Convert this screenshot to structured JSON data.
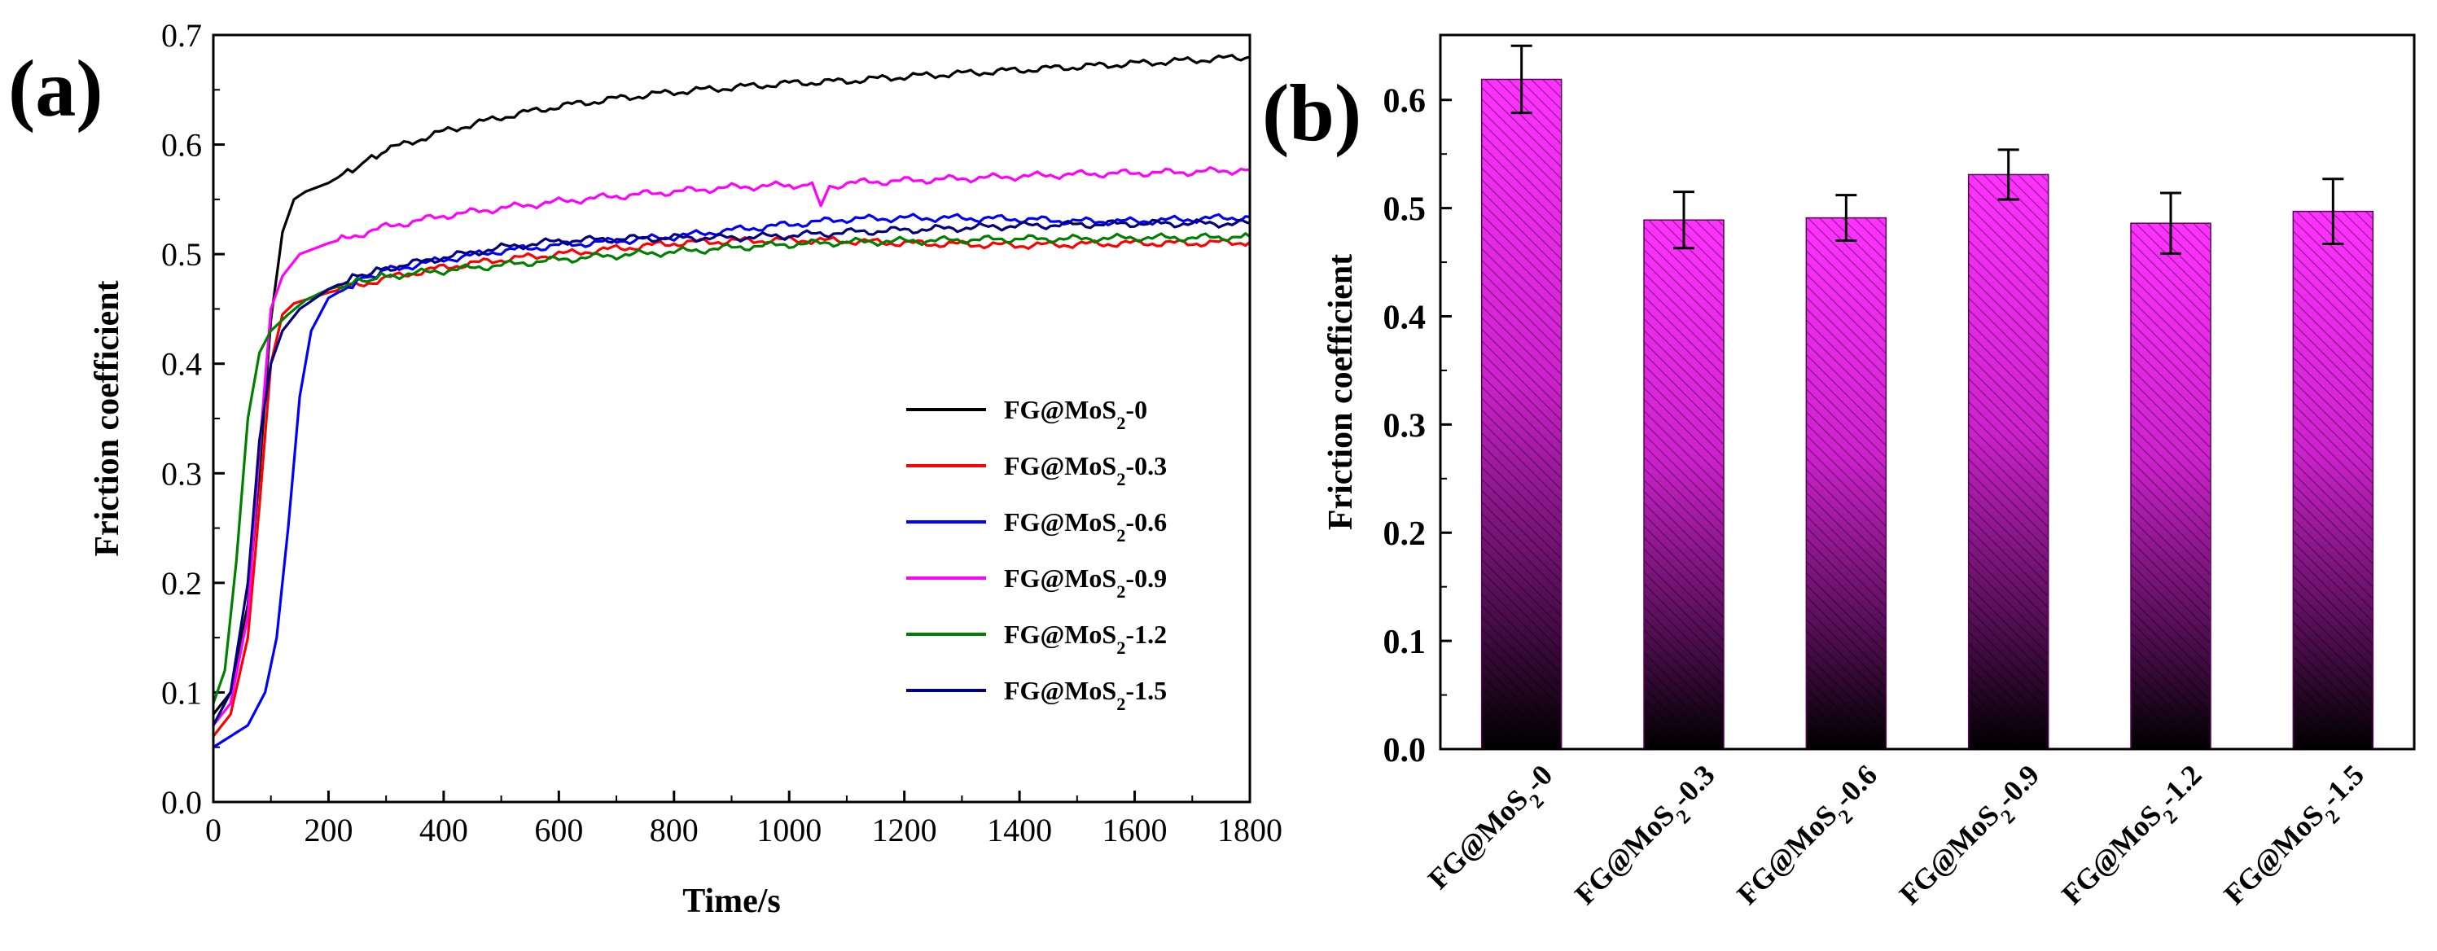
{
  "chart_data": [
    {
      "panel": "(a)",
      "type": "line",
      "xlabel": "Time/s",
      "ylabel": "Friction coefficient",
      "xlim": [
        0,
        1800
      ],
      "ylim": [
        0.0,
        0.7
      ],
      "xticks": [
        "0",
        "200",
        "400",
        "600",
        "800",
        "1000",
        "1200",
        "1400",
        "1600",
        "1800"
      ],
      "yticks": [
        "0.0",
        "0.1",
        "0.2",
        "0.3",
        "0.4",
        "0.5",
        "0.6",
        "0.7"
      ],
      "legend_position": "center-right",
      "series": [
        {
          "name": "FG@MoS",
          "subscript": "2",
          "suffix": "-0",
          "color": "#000000",
          "x": [
            0,
            30,
            60,
            80,
            100,
            120,
            140,
            160,
            200,
            250,
            300,
            400,
            500,
            600,
            700,
            800,
            900,
            1000,
            1100,
            1200,
            1300,
            1400,
            1500,
            1600,
            1700,
            1800
          ],
          "y": [
            0.08,
            0.1,
            0.18,
            0.3,
            0.44,
            0.52,
            0.55,
            0.557,
            0.565,
            0.58,
            0.595,
            0.612,
            0.625,
            0.635,
            0.642,
            0.648,
            0.652,
            0.656,
            0.658,
            0.662,
            0.665,
            0.668,
            0.671,
            0.674,
            0.677,
            0.68
          ]
        },
        {
          "name": "FG@MoS",
          "subscript": "2",
          "suffix": "-0.3",
          "color": "#ff0000",
          "x": [
            0,
            30,
            60,
            80,
            100,
            120,
            140,
            170,
            200,
            300,
            400,
            500,
            600,
            700,
            800,
            900,
            1000,
            1100,
            1200,
            1300,
            1400,
            1500,
            1600,
            1700,
            1800
          ],
          "y": [
            0.06,
            0.08,
            0.15,
            0.27,
            0.4,
            0.445,
            0.455,
            0.46,
            0.465,
            0.478,
            0.488,
            0.495,
            0.5,
            0.505,
            0.51,
            0.512,
            0.513,
            0.512,
            0.51,
            0.509,
            0.508,
            0.509,
            0.51,
            0.51,
            0.511
          ]
        },
        {
          "name": "FG@MoS",
          "subscript": "2",
          "suffix": "-0.6",
          "color": "#0000ff",
          "x": [
            0,
            30,
            60,
            90,
            110,
            130,
            150,
            170,
            200,
            250,
            300,
            400,
            500,
            600,
            700,
            800,
            900,
            1000,
            1100,
            1200,
            1300,
            1400,
            1500,
            1600,
            1700,
            1800
          ],
          "y": [
            0.05,
            0.06,
            0.07,
            0.1,
            0.15,
            0.25,
            0.37,
            0.43,
            0.46,
            0.475,
            0.485,
            0.495,
            0.503,
            0.508,
            0.512,
            0.516,
            0.522,
            0.527,
            0.532,
            0.533,
            0.533,
            0.532,
            0.53,
            0.53,
            0.532,
            0.534
          ]
        },
        {
          "name": "FG@MoS",
          "subscript": "2",
          "suffix": "-0.9",
          "color": "#ff00ff",
          "x": [
            0,
            30,
            60,
            80,
            100,
            120,
            150,
            200,
            300,
            400,
            500,
            600,
            700,
            800,
            900,
            1000,
            1040,
            1055,
            1070,
            1100,
            1200,
            1300,
            1400,
            1500,
            1600,
            1700,
            1800
          ],
          "y": [
            0.07,
            0.09,
            0.17,
            0.32,
            0.45,
            0.48,
            0.5,
            0.51,
            0.525,
            0.535,
            0.542,
            0.548,
            0.553,
            0.557,
            0.561,
            0.563,
            0.562,
            0.545,
            0.562,
            0.565,
            0.567,
            0.569,
            0.571,
            0.573,
            0.574,
            0.575,
            0.577
          ]
        },
        {
          "name": "FG@MoS",
          "subscript": "2",
          "suffix": "-1.2",
          "color": "#008000",
          "x": [
            0,
            20,
            40,
            60,
            80,
            100,
            130,
            160,
            200,
            250,
            300,
            400,
            500,
            600,
            700,
            800,
            900,
            1000,
            1100,
            1200,
            1300,
            1400,
            1500,
            1600,
            1700,
            1800
          ],
          "y": [
            0.09,
            0.12,
            0.22,
            0.35,
            0.41,
            0.43,
            0.445,
            0.458,
            0.468,
            0.475,
            0.48,
            0.485,
            0.49,
            0.495,
            0.499,
            0.502,
            0.506,
            0.509,
            0.511,
            0.512,
            0.513,
            0.514,
            0.514,
            0.515,
            0.515,
            0.516
          ]
        },
        {
          "name": "FG@MoS",
          "subscript": "2",
          "suffix": "-1.5",
          "color": "#000080",
          "x": [
            0,
            30,
            60,
            80,
            100,
            120,
            150,
            200,
            250,
            300,
            400,
            500,
            600,
            700,
            800,
            900,
            1000,
            1100,
            1200,
            1300,
            1400,
            1500,
            1600,
            1700,
            1800
          ],
          "y": [
            0.07,
            0.1,
            0.2,
            0.33,
            0.4,
            0.43,
            0.45,
            0.468,
            0.48,
            0.487,
            0.497,
            0.506,
            0.512,
            0.514,
            0.515,
            0.515,
            0.517,
            0.52,
            0.522,
            0.524,
            0.526,
            0.527,
            0.528,
            0.528,
            0.528
          ]
        }
      ]
    },
    {
      "panel": "(b)",
      "type": "bar",
      "ylabel": "Friction coefficient",
      "ylim": [
        0.0,
        0.66
      ],
      "yticks": [
        "0.0",
        "0.1",
        "0.2",
        "0.3",
        "0.4",
        "0.5",
        "0.6"
      ],
      "categories": [
        {
          "name": "FG@MoS",
          "subscript": "2",
          "suffix": "-0"
        },
        {
          "name": "FG@MoS",
          "subscript": "2",
          "suffix": "-0.3"
        },
        {
          "name": "FG@MoS",
          "subscript": "2",
          "suffix": "-0.6"
        },
        {
          "name": "FG@MoS",
          "subscript": "2",
          "suffix": "-0.9"
        },
        {
          "name": "FG@MoS",
          "subscript": "2",
          "suffix": "-1.2"
        },
        {
          "name": "FG@MoS",
          "subscript": "2",
          "suffix": "-1.5"
        }
      ],
      "values": [
        0.619,
        0.489,
        0.491,
        0.531,
        0.486,
        0.497
      ],
      "errors": [
        0.031,
        0.026,
        0.021,
        0.023,
        0.028,
        0.03
      ],
      "bar_color_top": "#ff33ff",
      "bar_color_bottom": "#000000"
    }
  ]
}
